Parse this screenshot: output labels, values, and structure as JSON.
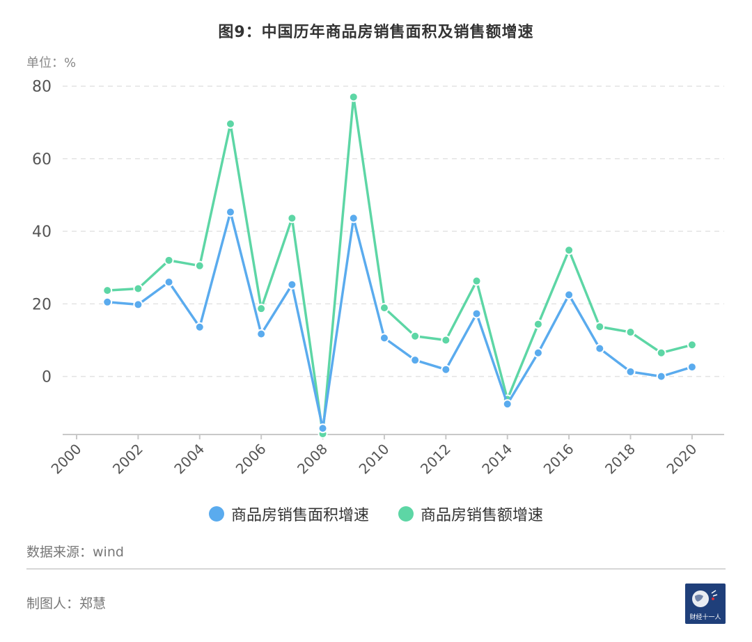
{
  "header": {
    "title": "图9：中国历年商品房销售面积及销售额增速",
    "unit": "单位：%"
  },
  "footer": {
    "source": "数据来源：wind",
    "author": "制图人：郑慧",
    "logo_text": "财经十一人"
  },
  "colors": {
    "area": "#5aabee",
    "sales": "#5dd6a5",
    "grid": "#e3e3e3",
    "axis": "#c8c8c8",
    "tick_text": "#555555"
  },
  "chart_data": {
    "type": "line",
    "title": "图9：中国历年商品房销售面积及销售额增速",
    "xlabel": "",
    "ylabel": "单位：%",
    "x_ticks": [
      2000,
      2002,
      2004,
      2006,
      2008,
      2010,
      2012,
      2014,
      2016,
      2018,
      2020
    ],
    "y_ticks": [
      0,
      20,
      40,
      60,
      80
    ],
    "xlim": [
      2000,
      2020.5
    ],
    "ylim": [
      -16,
      88
    ],
    "grid": "horizontal-dashed",
    "legend_position": "bottom",
    "x": [
      2001,
      2002,
      2003,
      2004,
      2005,
      2006,
      2007,
      2008,
      2009,
      2010,
      2011,
      2012,
      2013,
      2014,
      2015,
      2016,
      2017,
      2018,
      2019,
      2020
    ],
    "series": [
      {
        "name": "商品房销售面积增速",
        "color": "#5aabee",
        "values": [
          20.5,
          19.8,
          26.0,
          13.6,
          45.3,
          11.7,
          25.3,
          -14.3,
          43.6,
          10.6,
          4.5,
          1.9,
          17.3,
          -7.6,
          6.5,
          22.5,
          7.7,
          1.3,
          0.0,
          2.6
        ]
      },
      {
        "name": "商品房销售额增速",
        "color": "#5dd6a5",
        "values": [
          23.7,
          24.2,
          32.0,
          30.5,
          69.6,
          18.7,
          43.6,
          -15.8,
          77.0,
          18.9,
          11.1,
          10.0,
          26.3,
          -6.3,
          14.4,
          34.8,
          13.7,
          12.2,
          6.5,
          8.7
        ]
      }
    ]
  }
}
